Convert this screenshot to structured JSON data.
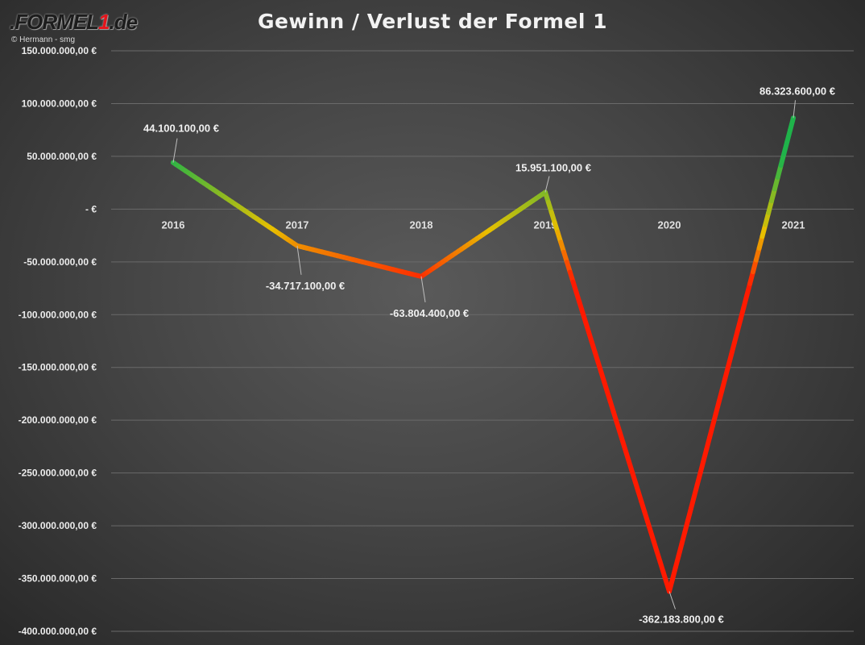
{
  "header": {
    "logo_text_a": ".FORMEL",
    "logo_text_b": "1",
    "logo_text_c": ".de",
    "credit": "© Hermann - smg"
  },
  "chart_data": {
    "type": "line",
    "title": "Gewinn / Verlust der Formel 1",
    "categories": [
      "2016",
      "2017",
      "2018",
      "2019",
      "2020",
      "2021"
    ],
    "series": [
      {
        "values": [
          44100100,
          -34717100,
          -63804400,
          15951100,
          -362183800,
          86323600
        ],
        "data_labels": [
          "44.100.100,00 €",
          "-34.717.100,00 €",
          "-63.804.400,00 €",
          "15.951.100,00 €",
          "-362.183.800,00 €",
          "86.323.600,00 €"
        ]
      }
    ],
    "y_ticks": [
      150000000,
      100000000,
      50000000,
      0,
      -50000000,
      -100000000,
      -150000000,
      -200000000,
      -250000000,
      -300000000,
      -350000000,
      -400000000
    ],
    "y_tick_labels": [
      "150.000.000,00 €",
      "100.000.000,00 €",
      "50.000.000,00 €",
      "-  €",
      "-50.000.000,00 €",
      "-100.000.000,00 €",
      "-150.000.000,00 €",
      "-200.000.000,00 €",
      "-250.000.000,00 €",
      "-300.000.000,00 €",
      "-350.000.000,00 €",
      "-400.000.000,00 €"
    ],
    "ylim": [
      -400000000,
      150000000
    ],
    "xlabel": "",
    "ylabel": "",
    "grid": true,
    "legend": "none",
    "colors": {
      "good": "#1fb34a",
      "mid": "#e8c000",
      "bad": "#ff1a00",
      "grid": "#6a6a6a"
    }
  }
}
